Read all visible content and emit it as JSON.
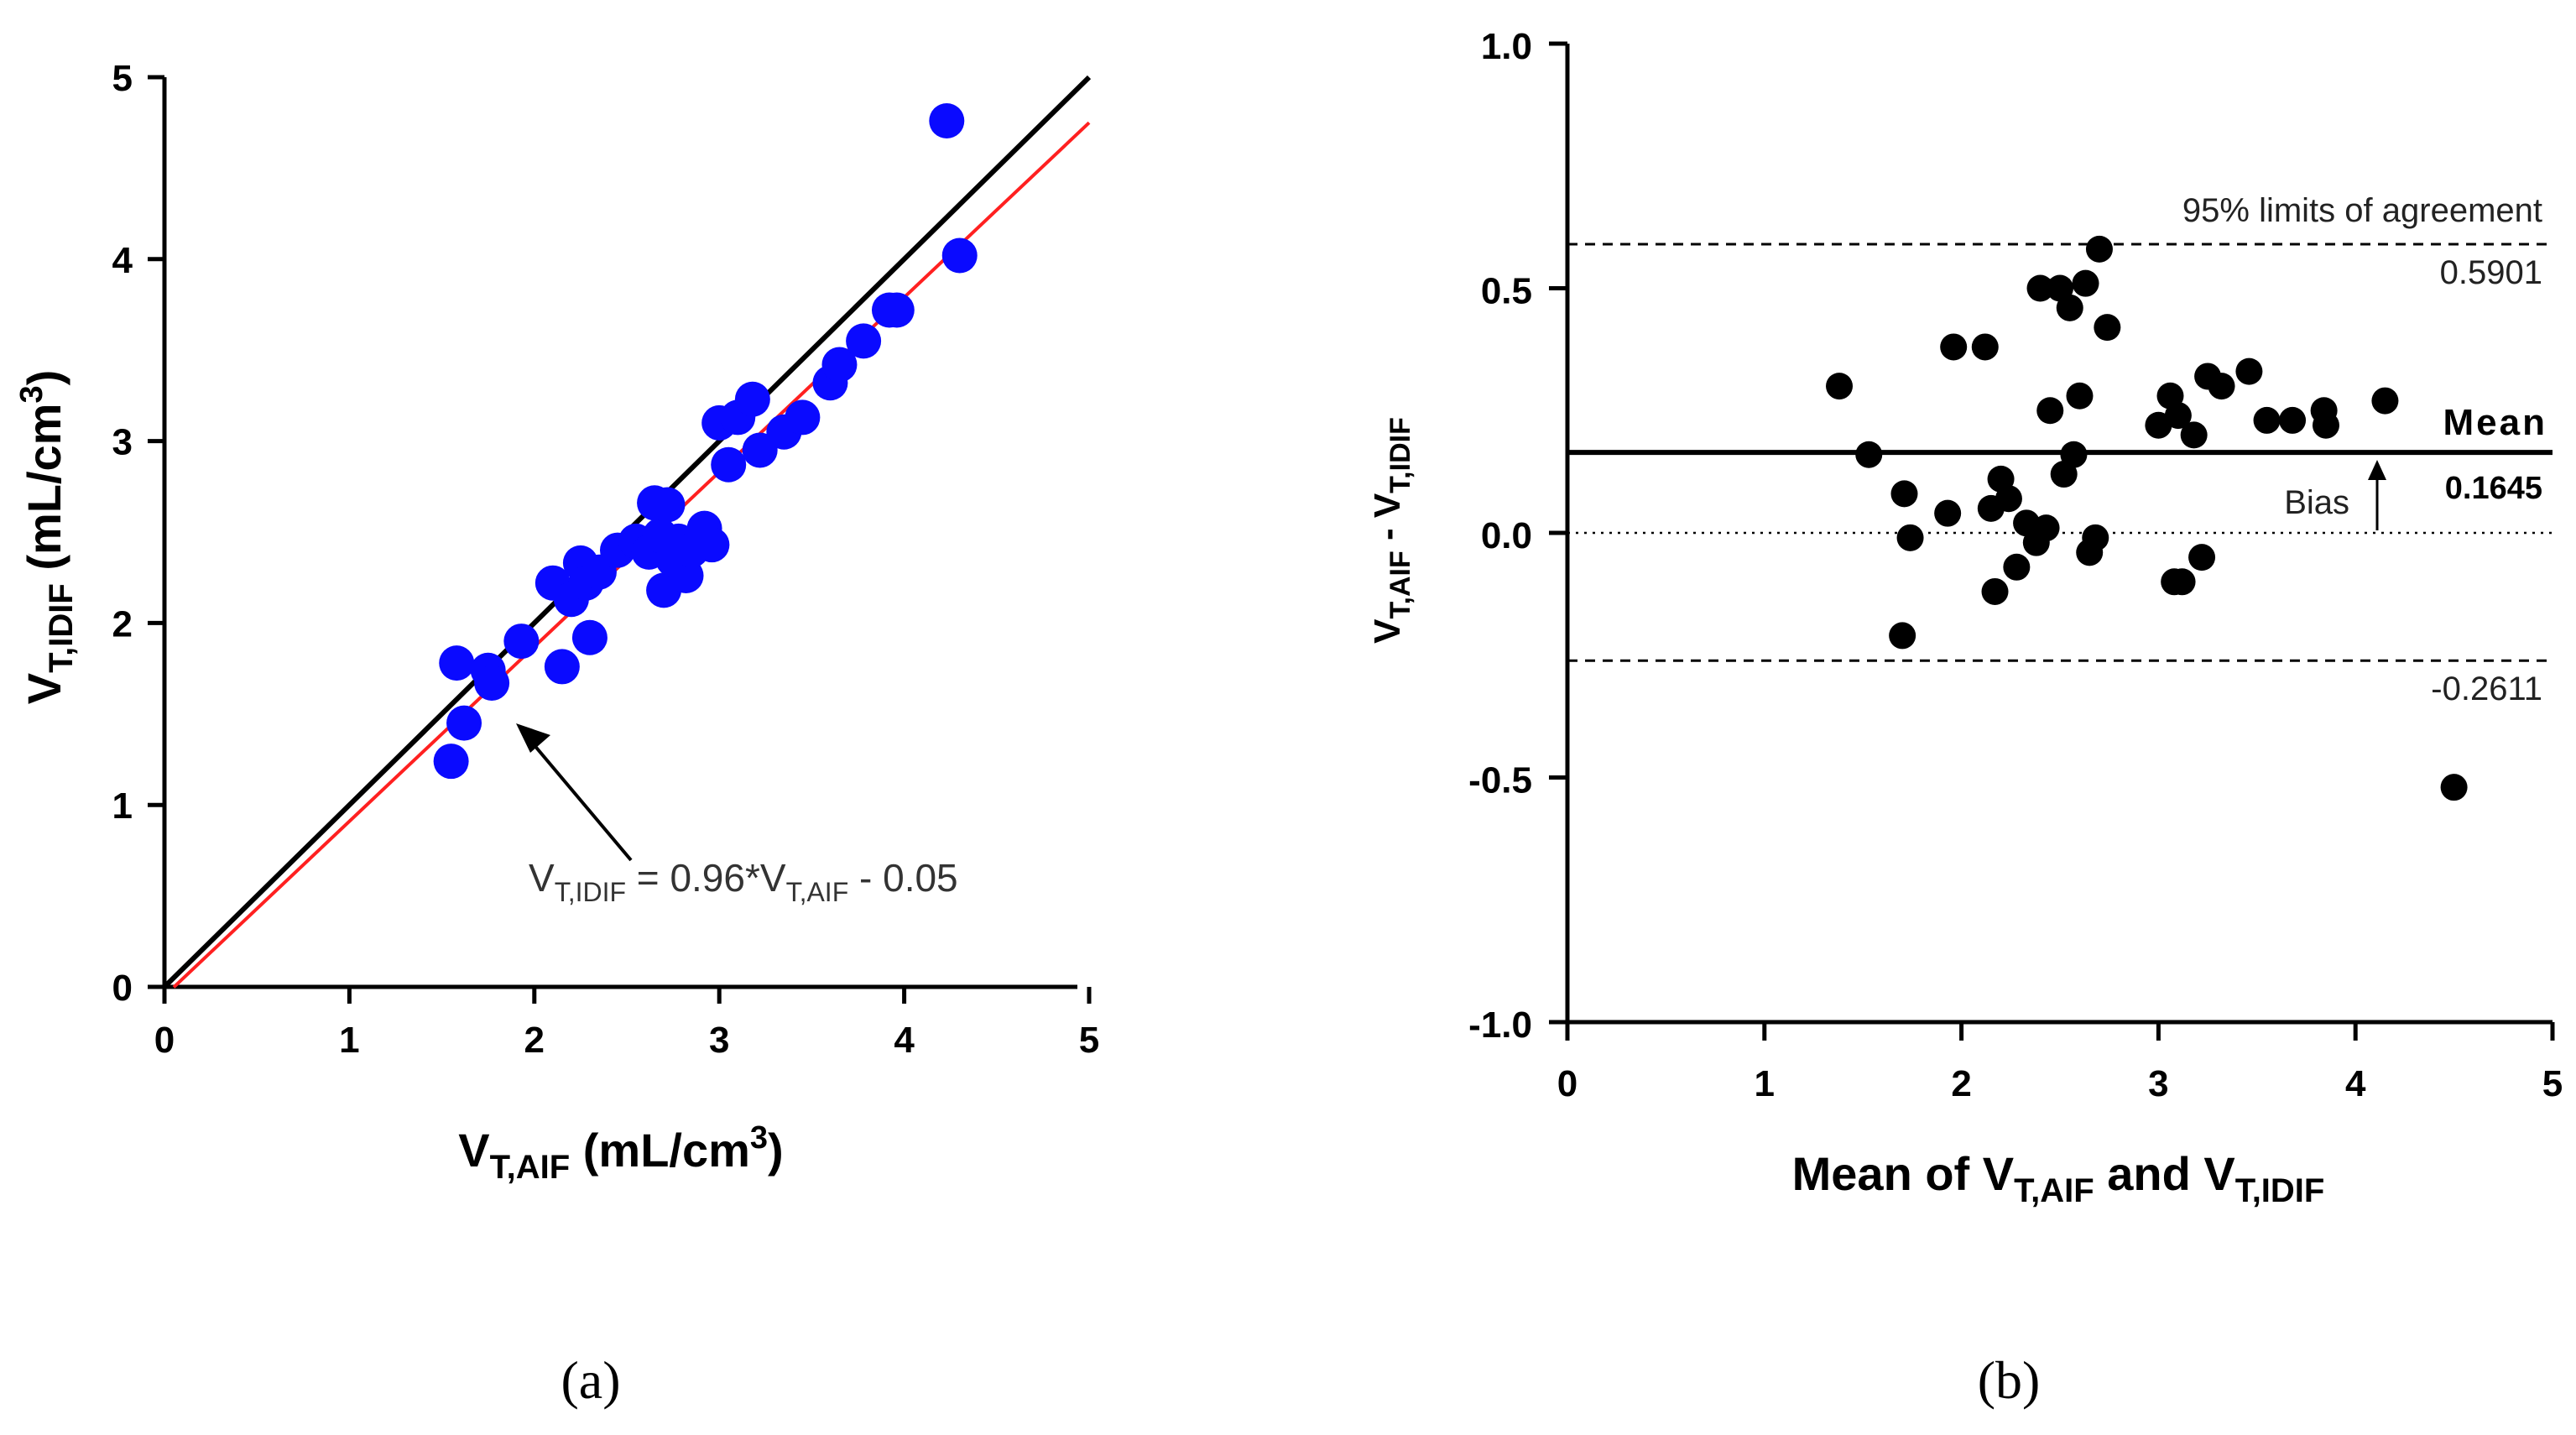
{
  "chart_data": [
    {
      "type": "scatter",
      "panel_caption": "(a)",
      "xlabel": {
        "main": "V",
        "sub": "T,AIF",
        "rest": " (mL/cm",
        "sup": "3",
        "close": ")"
      },
      "ylabel": {
        "main": "V",
        "sub": "T,IDIF",
        "rest": " (mL/cm",
        "sup": "3",
        "close": ")"
      },
      "xlim": [
        0,
        5
      ],
      "ylim": [
        0,
        5
      ],
      "xticks": [
        "0",
        "1",
        "2",
        "3",
        "4",
        "5"
      ],
      "yticks": [
        "0",
        "1",
        "2",
        "3",
        "4",
        "5"
      ],
      "point_color": "#0a0aff",
      "identity_line": {
        "color": "#000000",
        "from": [
          0,
          0
        ],
        "to": [
          5,
          5
        ]
      },
      "regression_line": {
        "color": "#ff2020",
        "slope": 0.96,
        "intercept": -0.05,
        "x_range": [
          0.05,
          5
        ]
      },
      "equation": {
        "l1": "V",
        "s1": "T,IDIF",
        "mid": " = 0.96*V",
        "s2": "T,AIF",
        "end": " - 0.05"
      },
      "points": [
        [
          1.55,
          1.24
        ],
        [
          1.58,
          1.78
        ],
        [
          1.62,
          1.45
        ],
        [
          1.75,
          1.74
        ],
        [
          1.77,
          1.67
        ],
        [
          1.93,
          1.9
        ],
        [
          2.1,
          2.22
        ],
        [
          2.15,
          1.76
        ],
        [
          2.2,
          2.13
        ],
        [
          2.25,
          2.33
        ],
        [
          2.28,
          2.22
        ],
        [
          2.3,
          1.92
        ],
        [
          2.35,
          2.28
        ],
        [
          2.45,
          2.4
        ],
        [
          2.55,
          2.45
        ],
        [
          2.62,
          2.39
        ],
        [
          2.65,
          2.66
        ],
        [
          2.68,
          2.48
        ],
        [
          2.7,
          2.18
        ],
        [
          2.72,
          2.65
        ],
        [
          2.75,
          2.35
        ],
        [
          2.78,
          2.45
        ],
        [
          2.82,
          2.26
        ],
        [
          2.85,
          2.4
        ],
        [
          2.92,
          2.52
        ],
        [
          2.96,
          2.43
        ],
        [
          3.0,
          3.1
        ],
        [
          3.05,
          2.87
        ],
        [
          3.1,
          3.13
        ],
        [
          3.18,
          3.23
        ],
        [
          3.22,
          2.95
        ],
        [
          3.35,
          3.05
        ],
        [
          3.45,
          3.13
        ],
        [
          3.6,
          3.32
        ],
        [
          3.65,
          3.42
        ],
        [
          3.78,
          3.55
        ],
        [
          3.92,
          3.72
        ],
        [
          3.96,
          3.72
        ],
        [
          4.23,
          4.76
        ],
        [
          4.3,
          4.02
        ]
      ]
    },
    {
      "type": "scatter",
      "panel_caption": "(b)",
      "xlabel": {
        "a": "Mean of V",
        "s1": "T,AIF",
        "b": " and V",
        "s2": "T,IDIF"
      },
      "ylabel": {
        "a": "V",
        "s1": "T,AIF",
        "b": " - V",
        "s2": "T,IDIF"
      },
      "xlim": [
        0,
        5
      ],
      "ylim": [
        -1.0,
        1.0
      ],
      "xticks": [
        "0",
        "1",
        "2",
        "3",
        "4",
        "5"
      ],
      "yticks": [
        "1.0",
        "0.5",
        "0.0",
        "-0.5",
        "-1.0"
      ],
      "point_color": "#000000",
      "mean_bias": 0.1645,
      "upper_loa": 0.5901,
      "lower_loa": -0.2611,
      "zero_line": 0.0,
      "labels": {
        "loa_title": "95% limits of agreement",
        "upper_value": "0.5901",
        "lower_value": "-0.2611",
        "mean": "Mean",
        "mean_value": "0.1645",
        "bias": "Bias"
      },
      "points": [
        [
          1.38,
          0.3
        ],
        [
          1.53,
          0.16
        ],
        [
          1.7,
          -0.21
        ],
        [
          1.71,
          0.08
        ],
        [
          1.74,
          -0.01
        ],
        [
          1.93,
          0.04
        ],
        [
          1.96,
          0.38
        ],
        [
          2.12,
          0.38
        ],
        [
          2.15,
          0.05
        ],
        [
          2.17,
          -0.12
        ],
        [
          2.2,
          0.11
        ],
        [
          2.24,
          0.07
        ],
        [
          2.28,
          -0.07
        ],
        [
          2.33,
          0.02
        ],
        [
          2.38,
          -0.02
        ],
        [
          2.4,
          0.5
        ],
        [
          2.43,
          0.01
        ],
        [
          2.45,
          0.25
        ],
        [
          2.5,
          0.5
        ],
        [
          2.52,
          0.12
        ],
        [
          2.55,
          0.46
        ],
        [
          2.57,
          0.16
        ],
        [
          2.6,
          0.28
        ],
        [
          2.63,
          0.51
        ],
        [
          2.65,
          -0.04
        ],
        [
          2.68,
          -0.01
        ],
        [
          2.7,
          0.58
        ],
        [
          2.74,
          0.42
        ],
        [
          3.0,
          0.22
        ],
        [
          3.06,
          0.28
        ],
        [
          3.08,
          -0.1
        ],
        [
          3.1,
          0.24
        ],
        [
          3.12,
          -0.1
        ],
        [
          3.18,
          0.2
        ],
        [
          3.22,
          -0.05
        ],
        [
          3.25,
          0.32
        ],
        [
          3.32,
          0.3
        ],
        [
          3.46,
          0.33
        ],
        [
          3.55,
          0.23
        ],
        [
          3.68,
          0.23
        ],
        [
          3.84,
          0.25
        ],
        [
          3.85,
          0.22
        ],
        [
          4.15,
          0.27
        ],
        [
          4.5,
          -0.52
        ]
      ]
    }
  ]
}
